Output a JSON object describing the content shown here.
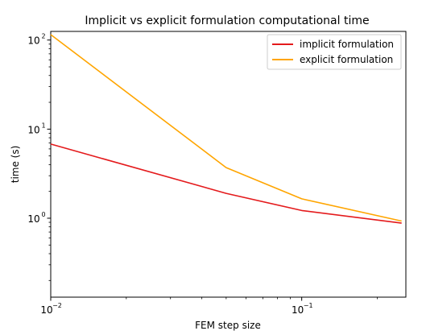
{
  "chart_data": {
    "type": "line",
    "title": "Implicit vs explicit formulation computational time",
    "xlabel": "FEM step size",
    "ylabel": "time (s)",
    "xscale": "log",
    "yscale": "log",
    "xlim": [
      0.01,
      0.26
    ],
    "ylim": [
      0.13,
      125
    ],
    "grid": false,
    "legend_position": "top-right",
    "x_ticks": [
      {
        "value": 0.01,
        "base": "10",
        "exp": "−2"
      },
      {
        "value": 0.1,
        "base": "10",
        "exp": "−1"
      }
    ],
    "y_ticks": [
      {
        "value": 1,
        "base": "10",
        "exp": "0"
      },
      {
        "value": 10,
        "base": "10",
        "exp": "1"
      },
      {
        "value": 100,
        "base": "10",
        "exp": "2"
      }
    ],
    "x": [
      0.01,
      0.05,
      0.1,
      0.25
    ],
    "series": [
      {
        "name": "implicit formulation",
        "color": "#e41a1c",
        "values": [
          6.8,
          1.9,
          1.22,
          0.88
        ]
      },
      {
        "name": "explicit formulation",
        "color": "#ffa500",
        "values": [
          115,
          3.7,
          1.65,
          0.93
        ]
      }
    ]
  }
}
